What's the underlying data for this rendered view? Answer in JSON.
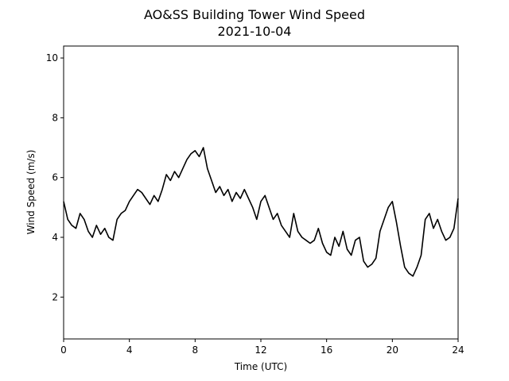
{
  "chart_data": {
    "type": "line",
    "title": "AO&SS Building Tower Wind Speed",
    "subtitle": "2021-10-04",
    "xlabel": "Time (UTC)",
    "ylabel": "Wind Speed (m/s)",
    "xlim": [
      0,
      24
    ],
    "ylim": [
      0.6,
      10.4
    ],
    "xticks": [
      0,
      4,
      8,
      12,
      16,
      20,
      24
    ],
    "yticks": [
      2,
      4,
      6,
      8,
      10
    ],
    "grid": false,
    "line_color": "#000000",
    "series": [
      {
        "x": [
          0,
          0.25,
          0.5,
          0.75,
          1,
          1.25,
          1.5,
          1.75,
          2,
          2.25,
          2.5,
          2.75,
          3,
          3.25,
          3.5,
          3.75,
          4,
          4.25,
          4.5,
          4.75,
          5,
          5.25,
          5.5,
          5.75,
          6,
          6.25,
          6.5,
          6.75,
          7,
          7.25,
          7.5,
          7.75,
          8,
          8.25,
          8.5,
          8.75,
          9,
          9.25,
          9.5,
          9.75,
          10,
          10.25,
          10.5,
          10.75,
          11,
          11.25,
          11.5,
          11.75,
          12,
          12.25,
          12.5,
          12.75,
          13,
          13.25,
          13.5,
          13.75,
          14,
          14.25,
          14.5,
          14.75,
          15,
          15.25,
          15.5,
          15.75,
          16,
          16.25,
          16.5,
          16.75,
          17,
          17.25,
          17.5,
          17.75,
          18,
          18.25,
          18.5,
          18.75,
          19,
          19.25,
          19.5,
          19.75,
          20,
          20.25,
          20.5,
          20.75,
          21,
          21.25,
          21.5,
          21.75,
          22,
          22.25,
          22.5,
          22.75,
          23,
          23.25,
          23.5,
          23.75,
          24
        ],
        "y": [
          5.2,
          4.6,
          4.4,
          4.3,
          4.8,
          4.6,
          4.2,
          4.0,
          4.4,
          4.1,
          4.3,
          4.0,
          3.9,
          4.6,
          4.8,
          4.9,
          5.2,
          5.4,
          5.6,
          5.5,
          5.3,
          5.1,
          5.4,
          5.2,
          5.6,
          6.1,
          5.9,
          6.2,
          6.0,
          6.3,
          6.6,
          6.8,
          6.9,
          6.7,
          7.0,
          6.3,
          5.9,
          5.5,
          5.7,
          5.4,
          5.6,
          5.2,
          5.5,
          5.3,
          5.6,
          5.3,
          5.0,
          4.6,
          5.2,
          5.4,
          5.0,
          4.6,
          4.8,
          4.4,
          4.2,
          4.0,
          4.8,
          4.2,
          4.0,
          3.9,
          3.8,
          3.9,
          4.3,
          3.8,
          3.5,
          3.4,
          4.0,
          3.7,
          4.2,
          3.6,
          3.4,
          3.9,
          4.0,
          3.2,
          3.0,
          3.1,
          3.3,
          4.2,
          4.6,
          5.0,
          5.2,
          4.5,
          3.7,
          3.0,
          2.8,
          2.7,
          3.0,
          3.4,
          4.6,
          4.8,
          4.3,
          4.6,
          4.2,
          3.9,
          4.0,
          4.3,
          5.3
        ]
      }
    ]
  }
}
